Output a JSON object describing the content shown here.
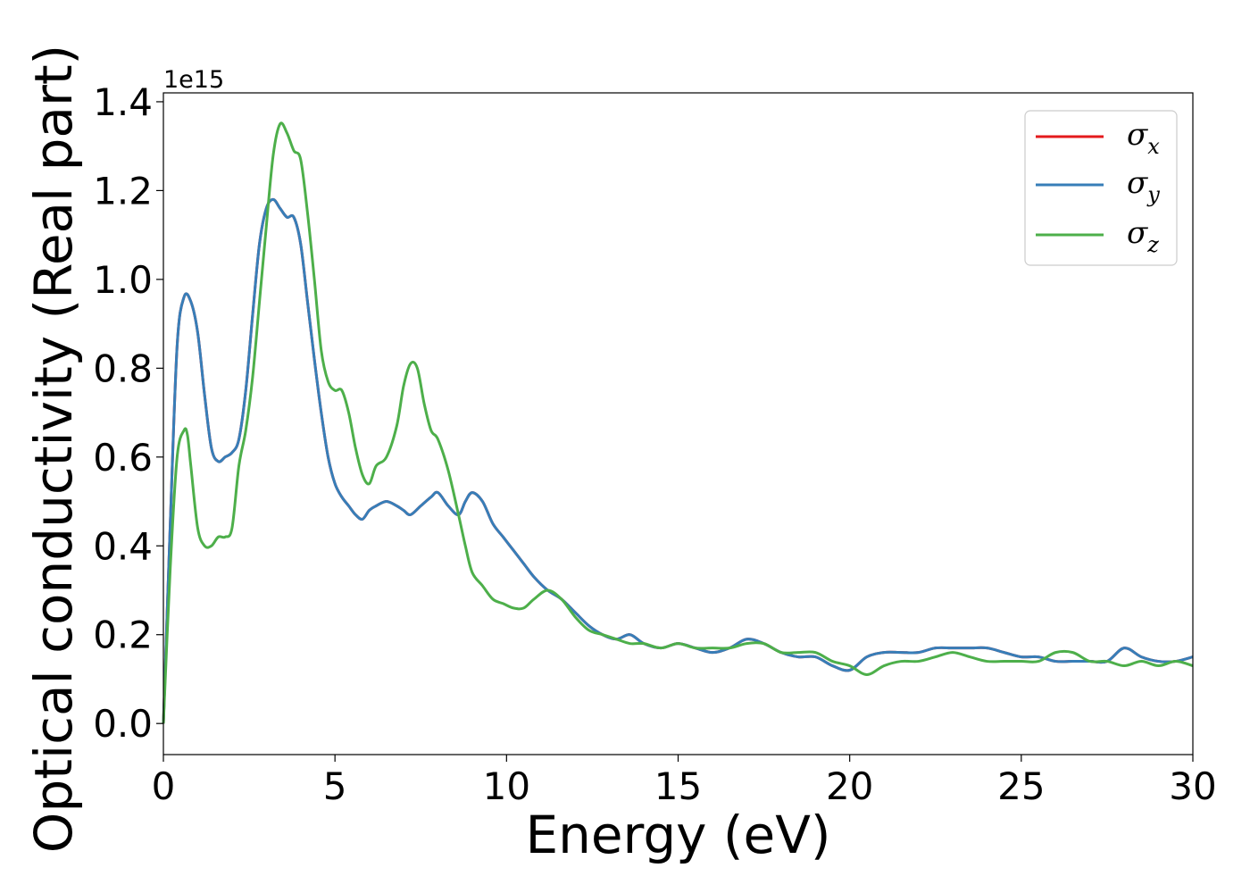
{
  "chart_data": {
    "type": "line",
    "xlabel": "Energy (eV)",
    "ylabel": "Optical conductivity (Real part)",
    "y_offset_text": "1e15",
    "xlim": [
      0,
      30
    ],
    "ylim": [
      -0.07,
      1.42
    ],
    "x_ticks": [
      0,
      5,
      10,
      15,
      20,
      25,
      30
    ],
    "x_tick_labels": [
      "0",
      "5",
      "10",
      "15",
      "20",
      "25",
      "30"
    ],
    "y_ticks": [
      0.0,
      0.2,
      0.4,
      0.6,
      0.8,
      1.0,
      1.2,
      1.4
    ],
    "y_tick_labels": [
      "0.0",
      "0.2",
      "0.4",
      "0.6",
      "0.8",
      "1.0",
      "1.2",
      "1.4"
    ],
    "grid": false,
    "legend_position": "top-right",
    "series": [
      {
        "name": "σ",
        "subscript": "x",
        "color": "#e41a1c",
        "x": [
          0,
          0.2,
          0.4,
          0.6,
          0.8,
          1.0,
          1.2,
          1.4,
          1.6,
          1.8,
          2.0,
          2.2,
          2.4,
          2.6,
          2.8,
          3.0,
          3.2,
          3.4,
          3.6,
          3.8,
          4.0,
          4.2,
          4.4,
          4.6,
          4.8,
          5.0,
          5.2,
          5.4,
          5.6,
          5.8,
          6.0,
          6.2,
          6.5,
          6.8,
          7.0,
          7.2,
          7.5,
          7.8,
          8.0,
          8.3,
          8.6,
          8.8,
          9.0,
          9.3,
          9.6,
          9.9,
          10.2,
          10.5,
          10.8,
          11.2,
          11.6,
          12.0,
          12.4,
          12.8,
          13.2,
          13.6,
          14.0,
          14.5,
          15.0,
          15.5,
          16.0,
          16.5,
          17.0,
          17.5,
          18.0,
          18.5,
          19.0,
          19.5,
          20.0,
          20.5,
          21.0,
          21.5,
          22.0,
          22.5,
          23.0,
          23.5,
          24.0,
          24.5,
          25.0,
          25.5,
          26.0,
          26.5,
          27.0,
          27.5,
          28.0,
          28.5,
          29.0,
          29.5,
          30.0
        ],
        "values": [
          0.0,
          0.45,
          0.85,
          0.96,
          0.95,
          0.88,
          0.74,
          0.62,
          0.59,
          0.6,
          0.61,
          0.64,
          0.75,
          0.92,
          1.08,
          1.16,
          1.18,
          1.16,
          1.14,
          1.14,
          1.08,
          0.95,
          0.82,
          0.7,
          0.6,
          0.54,
          0.51,
          0.49,
          0.47,
          0.46,
          0.48,
          0.49,
          0.5,
          0.49,
          0.48,
          0.47,
          0.49,
          0.51,
          0.52,
          0.49,
          0.47,
          0.5,
          0.52,
          0.5,
          0.45,
          0.42,
          0.39,
          0.36,
          0.33,
          0.3,
          0.28,
          0.25,
          0.22,
          0.2,
          0.19,
          0.2,
          0.18,
          0.17,
          0.18,
          0.17,
          0.16,
          0.17,
          0.19,
          0.18,
          0.16,
          0.15,
          0.15,
          0.13,
          0.12,
          0.15,
          0.16,
          0.16,
          0.16,
          0.17,
          0.17,
          0.17,
          0.17,
          0.16,
          0.15,
          0.15,
          0.14,
          0.14,
          0.14,
          0.14,
          0.17,
          0.15,
          0.14,
          0.14,
          0.15
        ]
      },
      {
        "name": "σ",
        "subscript": "y",
        "color": "#377eb8",
        "x": [
          0,
          0.2,
          0.4,
          0.6,
          0.8,
          1.0,
          1.2,
          1.4,
          1.6,
          1.8,
          2.0,
          2.2,
          2.4,
          2.6,
          2.8,
          3.0,
          3.2,
          3.4,
          3.6,
          3.8,
          4.0,
          4.2,
          4.4,
          4.6,
          4.8,
          5.0,
          5.2,
          5.4,
          5.6,
          5.8,
          6.0,
          6.2,
          6.5,
          6.8,
          7.0,
          7.2,
          7.5,
          7.8,
          8.0,
          8.3,
          8.6,
          8.8,
          9.0,
          9.3,
          9.6,
          9.9,
          10.2,
          10.5,
          10.8,
          11.2,
          11.6,
          12.0,
          12.4,
          12.8,
          13.2,
          13.6,
          14.0,
          14.5,
          15.0,
          15.5,
          16.0,
          16.5,
          17.0,
          17.5,
          18.0,
          18.5,
          19.0,
          19.5,
          20.0,
          20.5,
          21.0,
          21.5,
          22.0,
          22.5,
          23.0,
          23.5,
          24.0,
          24.5,
          25.0,
          25.5,
          26.0,
          26.5,
          27.0,
          27.5,
          28.0,
          28.5,
          29.0,
          29.5,
          30.0
        ],
        "values": [
          0.0,
          0.45,
          0.85,
          0.96,
          0.95,
          0.88,
          0.74,
          0.62,
          0.59,
          0.6,
          0.61,
          0.64,
          0.75,
          0.92,
          1.08,
          1.16,
          1.18,
          1.16,
          1.14,
          1.14,
          1.08,
          0.95,
          0.82,
          0.7,
          0.6,
          0.54,
          0.51,
          0.49,
          0.47,
          0.46,
          0.48,
          0.49,
          0.5,
          0.49,
          0.48,
          0.47,
          0.49,
          0.51,
          0.52,
          0.49,
          0.47,
          0.5,
          0.52,
          0.5,
          0.45,
          0.42,
          0.39,
          0.36,
          0.33,
          0.3,
          0.28,
          0.25,
          0.22,
          0.2,
          0.19,
          0.2,
          0.18,
          0.17,
          0.18,
          0.17,
          0.16,
          0.17,
          0.19,
          0.18,
          0.16,
          0.15,
          0.15,
          0.13,
          0.12,
          0.15,
          0.16,
          0.16,
          0.16,
          0.17,
          0.17,
          0.17,
          0.17,
          0.16,
          0.15,
          0.15,
          0.14,
          0.14,
          0.14,
          0.14,
          0.17,
          0.15,
          0.14,
          0.14,
          0.15
        ]
      },
      {
        "name": "σ",
        "subscript": "z",
        "color": "#4daf4a",
        "x": [
          0,
          0.2,
          0.4,
          0.6,
          0.7,
          0.8,
          1.0,
          1.2,
          1.4,
          1.6,
          1.8,
          2.0,
          2.2,
          2.4,
          2.6,
          2.8,
          3.0,
          3.2,
          3.4,
          3.6,
          3.8,
          4.0,
          4.2,
          4.4,
          4.6,
          4.8,
          5.0,
          5.2,
          5.4,
          5.6,
          5.8,
          6.0,
          6.2,
          6.5,
          6.8,
          7.0,
          7.2,
          7.4,
          7.6,
          7.8,
          8.0,
          8.3,
          8.6,
          8.8,
          9.0,
          9.3,
          9.6,
          9.9,
          10.2,
          10.5,
          10.8,
          11.2,
          11.6,
          12.0,
          12.4,
          12.8,
          13.2,
          13.6,
          14.0,
          14.5,
          15.0,
          15.5,
          16.0,
          16.5,
          17.0,
          17.5,
          18.0,
          18.5,
          19.0,
          19.5,
          20.0,
          20.5,
          21.0,
          21.5,
          22.0,
          22.5,
          23.0,
          23.5,
          24.0,
          24.5,
          25.0,
          25.5,
          26.0,
          26.5,
          27.0,
          27.5,
          28.0,
          28.5,
          29.0,
          29.5,
          30.0
        ],
        "values": [
          0.0,
          0.35,
          0.6,
          0.66,
          0.65,
          0.58,
          0.44,
          0.4,
          0.4,
          0.42,
          0.42,
          0.44,
          0.58,
          0.66,
          0.78,
          0.95,
          1.12,
          1.28,
          1.35,
          1.33,
          1.29,
          1.27,
          1.15,
          1.0,
          0.84,
          0.77,
          0.75,
          0.75,
          0.7,
          0.62,
          0.56,
          0.54,
          0.58,
          0.6,
          0.67,
          0.76,
          0.81,
          0.8,
          0.72,
          0.66,
          0.64,
          0.57,
          0.47,
          0.4,
          0.34,
          0.31,
          0.28,
          0.27,
          0.26,
          0.26,
          0.28,
          0.3,
          0.28,
          0.24,
          0.21,
          0.2,
          0.19,
          0.18,
          0.18,
          0.17,
          0.18,
          0.17,
          0.17,
          0.17,
          0.18,
          0.18,
          0.16,
          0.16,
          0.16,
          0.14,
          0.13,
          0.11,
          0.13,
          0.14,
          0.14,
          0.15,
          0.16,
          0.15,
          0.14,
          0.14,
          0.14,
          0.14,
          0.16,
          0.16,
          0.14,
          0.14,
          0.13,
          0.14,
          0.13,
          0.14,
          0.13
        ]
      }
    ]
  }
}
